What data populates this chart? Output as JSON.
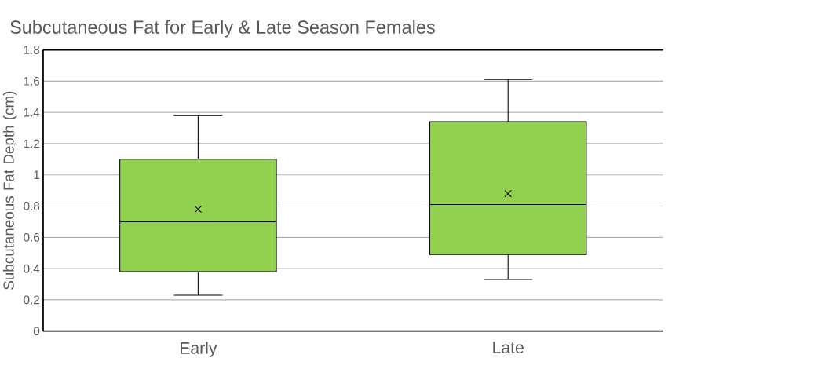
{
  "chart_data": {
    "type": "box",
    "title": "Subcutaneous Fat for Early & Late Season Females",
    "ylabel": "Subcutaneous Fat Depth (cm)",
    "categories": [
      "Early",
      "Late"
    ],
    "boxes": [
      {
        "low": 0.23,
        "q1": 0.38,
        "median": 0.7,
        "q3": 1.1,
        "high": 1.38,
        "mean": 0.78
      },
      {
        "low": 0.33,
        "q1": 0.49,
        "median": 0.81,
        "q3": 1.34,
        "high": 1.61,
        "mean": 0.88
      }
    ],
    "color": "#92d050",
    "ylim": [
      0,
      1.8
    ],
    "yticks": [
      0,
      0.2,
      0.4,
      0.6,
      0.8,
      1,
      1.2,
      1.4,
      1.6,
      1.8
    ],
    "grid": "y"
  }
}
